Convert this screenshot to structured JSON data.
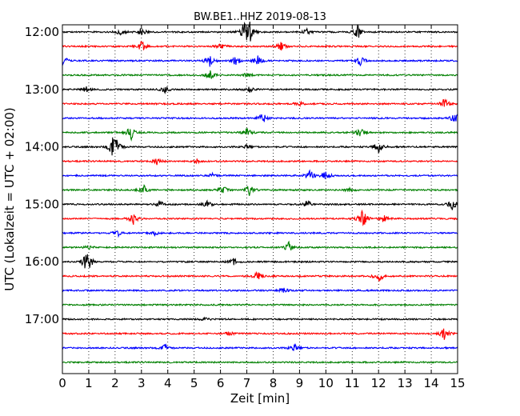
{
  "chart_data": {
    "type": "line",
    "title": "BW.BE1..HHZ 2019-08-13",
    "xlabel": "Zeit  [min]",
    "ylabel": "UTC (Lokalzeit = UTC + 02:00)",
    "xlim": [
      0,
      15
    ],
    "x_ticks": [
      "0",
      "1",
      "2",
      "3",
      "4",
      "5",
      "6",
      "7",
      "8",
      "9",
      "10",
      "11",
      "12",
      "13",
      "14",
      "15"
    ],
    "y_tick_labels": [
      "12:00",
      "13:00",
      "14:00",
      "15:00",
      "16:00",
      "17:00"
    ],
    "grid": "vertical dotted",
    "colors": [
      "#000000",
      "#ff0000",
      "#0000ff",
      "#008000"
    ],
    "traces": [
      {
        "start": "12:00",
        "events": [
          [
            2.2,
            0.3
          ],
          [
            3.0,
            0.4
          ],
          [
            6.9,
            0.7
          ],
          [
            7.1,
            1.0
          ],
          [
            9.3,
            0.3
          ],
          [
            11.2,
            0.7
          ]
        ]
      },
      {
        "start": "12:15",
        "events": [
          [
            3.0,
            0.5
          ],
          [
            6.0,
            0.3
          ],
          [
            8.3,
            0.4
          ]
        ]
      },
      {
        "start": "12:30",
        "events": [
          [
            0.05,
            0.4
          ],
          [
            5.6,
            0.6
          ],
          [
            6.6,
            0.5
          ],
          [
            7.4,
            0.6
          ],
          [
            11.3,
            0.5
          ]
        ]
      },
      {
        "start": "12:45",
        "events": [
          [
            5.6,
            0.5
          ],
          [
            7.0,
            0.2
          ]
        ]
      },
      {
        "start": "13:00",
        "events": [
          [
            0.9,
            0.3
          ],
          [
            3.9,
            0.4
          ],
          [
            7.1,
            0.3
          ]
        ]
      },
      {
        "start": "13:15",
        "events": [
          [
            14.5,
            0.5
          ],
          [
            9.0,
            0.2
          ]
        ]
      },
      {
        "start": "13:30",
        "events": [
          [
            7.6,
            0.5
          ],
          [
            14.9,
            0.5
          ]
        ]
      },
      {
        "start": "13:45",
        "events": [
          [
            2.6,
            0.7
          ],
          [
            7.0,
            0.4
          ],
          [
            11.3,
            0.5
          ]
        ]
      },
      {
        "start": "14:00",
        "events": [
          [
            1.9,
            0.8
          ],
          [
            2.1,
            0.6
          ],
          [
            12.0,
            0.7
          ],
          [
            7.0,
            0.2
          ]
        ]
      },
      {
        "start": "14:15",
        "events": [
          [
            3.6,
            0.3
          ],
          [
            5.1,
            0.2
          ]
        ]
      },
      {
        "start": "14:30",
        "events": [
          [
            5.7,
            0.2
          ],
          [
            9.4,
            0.5
          ],
          [
            10.0,
            0.4
          ]
        ]
      },
      {
        "start": "14:45",
        "events": [
          [
            3.1,
            0.4
          ],
          [
            6.1,
            0.4
          ],
          [
            7.1,
            0.5
          ],
          [
            10.9,
            0.2
          ]
        ]
      },
      {
        "start": "15:00",
        "events": [
          [
            3.7,
            0.3
          ],
          [
            5.5,
            0.3
          ],
          [
            9.3,
            0.4
          ],
          [
            14.8,
            0.5
          ]
        ]
      },
      {
        "start": "15:15",
        "events": [
          [
            2.7,
            0.5
          ],
          [
            11.4,
            0.9
          ],
          [
            12.2,
            0.4
          ]
        ]
      },
      {
        "start": "15:30",
        "events": [
          [
            2.1,
            0.3
          ],
          [
            3.5,
            0.2
          ]
        ]
      },
      {
        "start": "15:45",
        "events": [
          [
            8.6,
            0.5
          ],
          [
            1.0,
            0.2
          ]
        ]
      },
      {
        "start": "16:00",
        "events": [
          [
            0.9,
            0.6
          ],
          [
            1.0,
            0.5
          ],
          [
            6.5,
            0.3
          ]
        ]
      },
      {
        "start": "16:15",
        "events": [
          [
            7.4,
            0.4
          ],
          [
            12.0,
            0.6
          ]
        ]
      },
      {
        "start": "16:30",
        "events": [
          [
            8.4,
            0.3
          ]
        ]
      },
      {
        "start": "16:45",
        "events": []
      },
      {
        "start": "17:00",
        "events": [
          [
            5.5,
            0.2
          ]
        ]
      },
      {
        "start": "17:15",
        "events": [
          [
            6.3,
            0.2
          ],
          [
            14.5,
            0.6
          ]
        ]
      },
      {
        "start": "17:30",
        "events": [
          [
            3.9,
            0.3
          ],
          [
            8.8,
            0.4
          ]
        ]
      },
      {
        "start": "17:45",
        "events": []
      }
    ]
  }
}
